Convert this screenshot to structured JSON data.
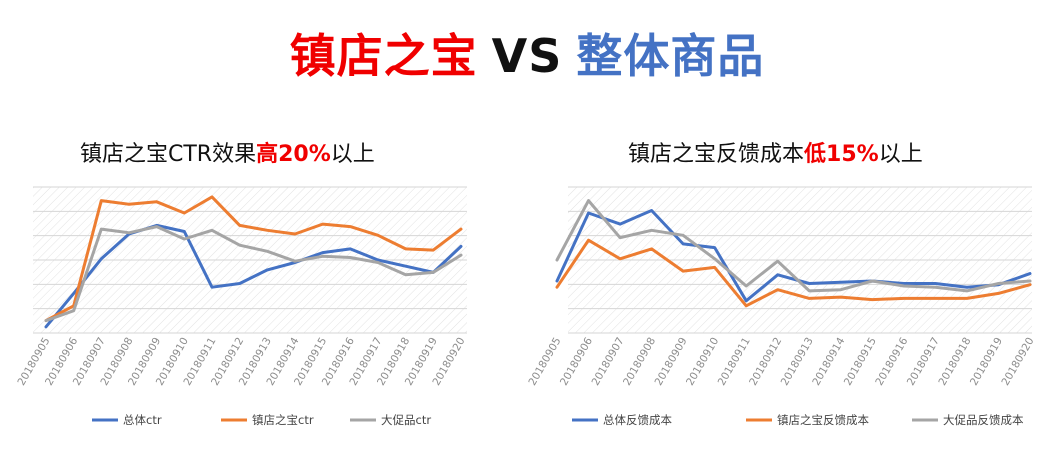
{
  "headline": {
    "part1": "镇店之宝",
    "part2": "VS",
    "part3": "整体商品"
  },
  "colors": {
    "red": "#f00000",
    "blue": "#4472c4",
    "orange": "#ed7d31",
    "gray": "#a5a5a5"
  },
  "chart_data": [
    {
      "type": "line",
      "title_prefix": "镇店之宝CTR效果",
      "title_highlight": "高20%",
      "title_suffix": "以上",
      "categories": [
        "20180905",
        "20180906",
        "20180907",
        "20180908",
        "20180909",
        "20180910",
        "20180911",
        "20180912",
        "20180913",
        "20180914",
        "20180915",
        "20180916",
        "20180917",
        "20180918",
        "20180919",
        "20180920"
      ],
      "series": [
        {
          "name": "总体ctr",
          "color": "#4472c4",
          "values": [
            5,
            32,
            60,
            80,
            87,
            82,
            37,
            40,
            51,
            57,
            65,
            68,
            59,
            54,
            49,
            70
          ]
        },
        {
          "name": "镇店之宝ctr",
          "color": "#ed7d31",
          "values": [
            10,
            22,
            107,
            104,
            106,
            97,
            110,
            87,
            83,
            80,
            88,
            86,
            79,
            68,
            67,
            84
          ]
        },
        {
          "name": "大促品ctr",
          "color": "#a5a5a5",
          "values": [
            10,
            18,
            84,
            81,
            86,
            76,
            83,
            71,
            66,
            58,
            62,
            61,
            57,
            47,
            49,
            63
          ]
        }
      ],
      "ylim": [
        0,
        118
      ],
      "grid": true,
      "legend": "bottom"
    },
    {
      "type": "line",
      "title_prefix": "镇店之宝反馈成本",
      "title_highlight": "低15%",
      "title_suffix": "以上",
      "categories": [
        "20180905",
        "20180906",
        "20180907",
        "20180908",
        "20180909",
        "20180910",
        "20180911",
        "20180912",
        "20180913",
        "20180914",
        "20180915",
        "20180916",
        "20180917",
        "20180918",
        "20180919",
        "20180920"
      ],
      "series": [
        {
          "name": "总体反馈成本",
          "color": "#4472c4",
          "values": [
            42,
            97,
            88,
            99,
            72,
            69,
            26,
            47,
            40,
            41,
            42,
            40,
            40,
            37,
            39,
            48
          ]
        },
        {
          "name": "镇店之宝反馈成本",
          "color": "#ed7d31",
          "values": [
            37,
            75,
            60,
            68,
            50,
            53,
            22,
            35,
            28,
            29,
            27,
            28,
            28,
            28,
            32,
            39
          ]
        },
        {
          "name": "大促品反馈成本",
          "color": "#a5a5a5",
          "values": [
            59,
            107,
            77,
            83,
            79,
            60,
            38,
            58,
            34,
            35,
            42,
            38,
            37,
            34,
            40,
            42
          ]
        }
      ],
      "ylim": [
        0,
        118
      ],
      "grid": true,
      "legend": "bottom"
    }
  ]
}
